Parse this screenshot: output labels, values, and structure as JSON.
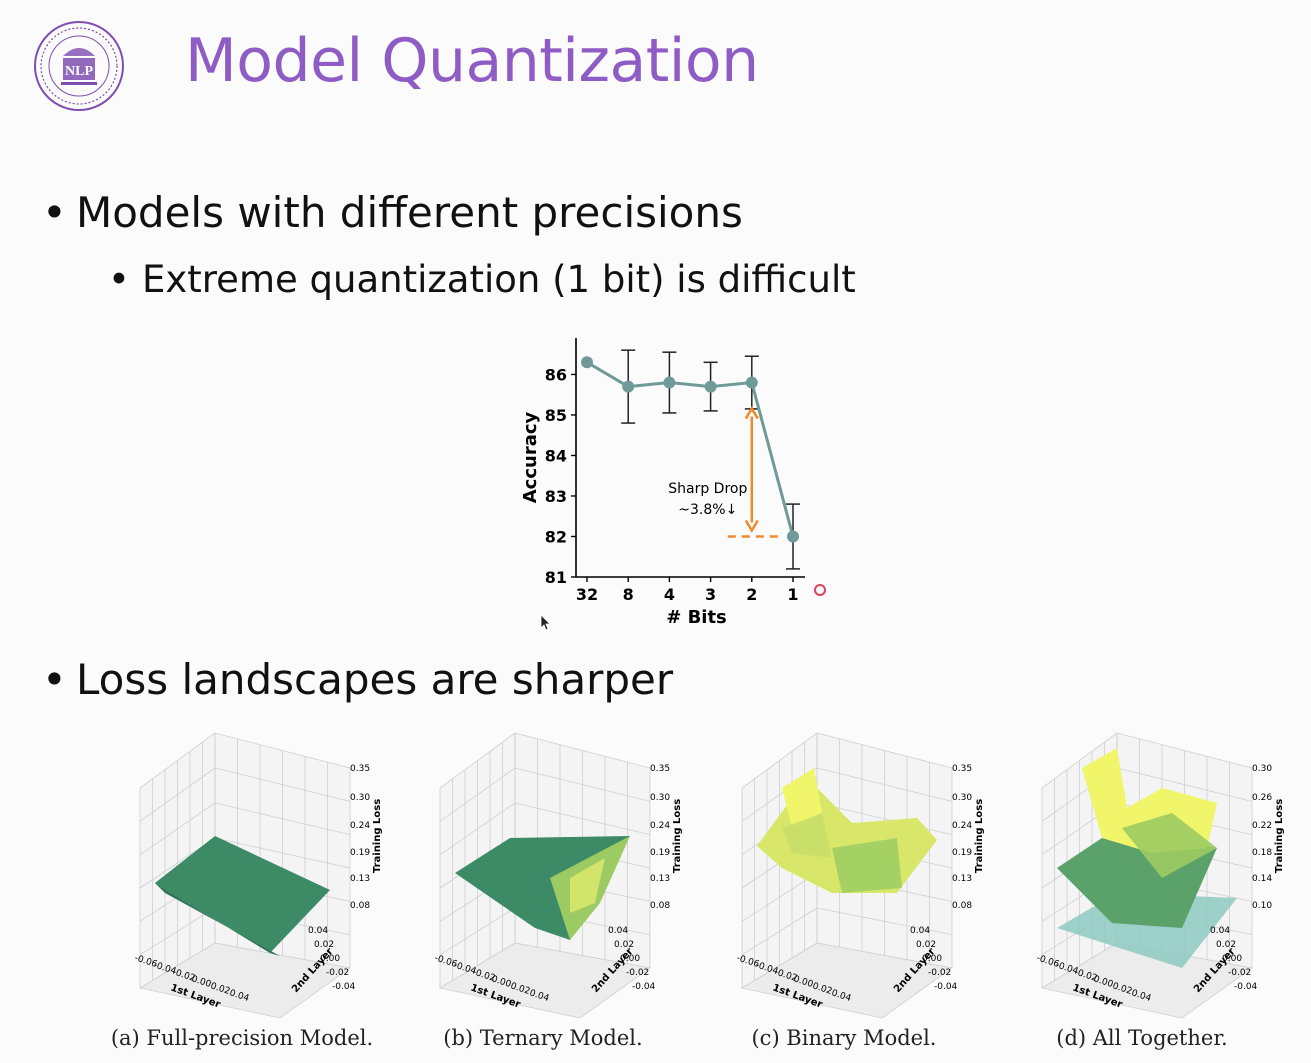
{
  "slide": {
    "title": "Model Quantization",
    "bullets": [
      {
        "level": 1,
        "text": "Models with different precisions"
      },
      {
        "level": 2,
        "text": "Extreme quantization (1 bit) is difficult"
      },
      {
        "level": 1,
        "text": "Loss landscapes are sharper"
      }
    ],
    "logo": {
      "text": "NLP",
      "icon": "university-seal-logo",
      "color": "#7e4fb0"
    }
  },
  "chart_data": [
    {
      "type": "line",
      "title": "",
      "xlabel": "# Bits",
      "ylabel": "Accuracy",
      "categories": [
        "32",
        "8",
        "4",
        "3",
        "2",
        "1"
      ],
      "series": [
        {
          "values": [
            86.3,
            85.7,
            85.8,
            85.7,
            85.8,
            82.0
          ],
          "errors": [
            0.0,
            0.9,
            0.75,
            0.6,
            0.65,
            0.8
          ]
        }
      ],
      "ylim": [
        81,
        86.9
      ],
      "yticks": [
        81,
        82,
        83,
        84,
        85,
        86
      ],
      "annotation": {
        "text_line1": "Sharp Drop",
        "text_line2": "~3.8%↓"
      },
      "colors": {
        "line": "#6f9a98",
        "annotation": "#ef8a2b"
      }
    },
    {
      "type": "surface",
      "caption": "(a) Full-precision Model.",
      "xlabel": "1st Layer",
      "ylabel": "2nd Layer",
      "zlabel": "Training Loss",
      "xticks": [
        "-0.06",
        "-0.04",
        "-0.02",
        "0.00",
        "0.02",
        "0.04"
      ],
      "yticks": [
        "-0.04",
        "-0.02",
        "0.00",
        "0.02",
        "0.04"
      ],
      "zticks": [
        "0.08",
        "0.13",
        "0.19",
        "0.24",
        "0.30",
        "0.35"
      ]
    },
    {
      "type": "surface",
      "caption": "(b) Ternary Model.",
      "xlabel": "1st Layer",
      "ylabel": "2nd Layer",
      "zlabel": "Training Loss",
      "xticks": [
        "-0.06",
        "-0.04",
        "-0.02",
        "0.00",
        "0.02",
        "0.04"
      ],
      "yticks": [
        "-0.04",
        "-0.02",
        "0.00",
        "0.02",
        "0.04"
      ],
      "zticks": [
        "0.08",
        "0.13",
        "0.19",
        "0.24",
        "0.30",
        "0.35"
      ]
    },
    {
      "type": "surface",
      "caption": "(c) Binary Model.",
      "xlabel": "1st Layer",
      "ylabel": "2nd Layer",
      "zlabel": "Training Loss",
      "xticks": [
        "-0.06",
        "-0.04",
        "-0.02",
        "0.00",
        "0.02",
        "0.04"
      ],
      "yticks": [
        "-0.04",
        "-0.02",
        "0.00",
        "0.02",
        "0.04"
      ],
      "zticks": [
        "0.08",
        "0.13",
        "0.19",
        "0.24",
        "0.30",
        "0.35"
      ]
    },
    {
      "type": "surface",
      "caption": "(d) All Together.",
      "xlabel": "1st Layer",
      "ylabel": "2nd Layer",
      "zlabel": "Training Loss",
      "xticks": [
        "-0.06",
        "-0.04",
        "-0.02",
        "0.00",
        "0.02",
        "0.04"
      ],
      "yticks": [
        "-0.04",
        "-0.02",
        "0.00",
        "0.02",
        "0.04"
      ],
      "zticks": [
        "0.10",
        "0.14",
        "0.18",
        "0.22",
        "0.26",
        "0.30"
      ]
    }
  ]
}
